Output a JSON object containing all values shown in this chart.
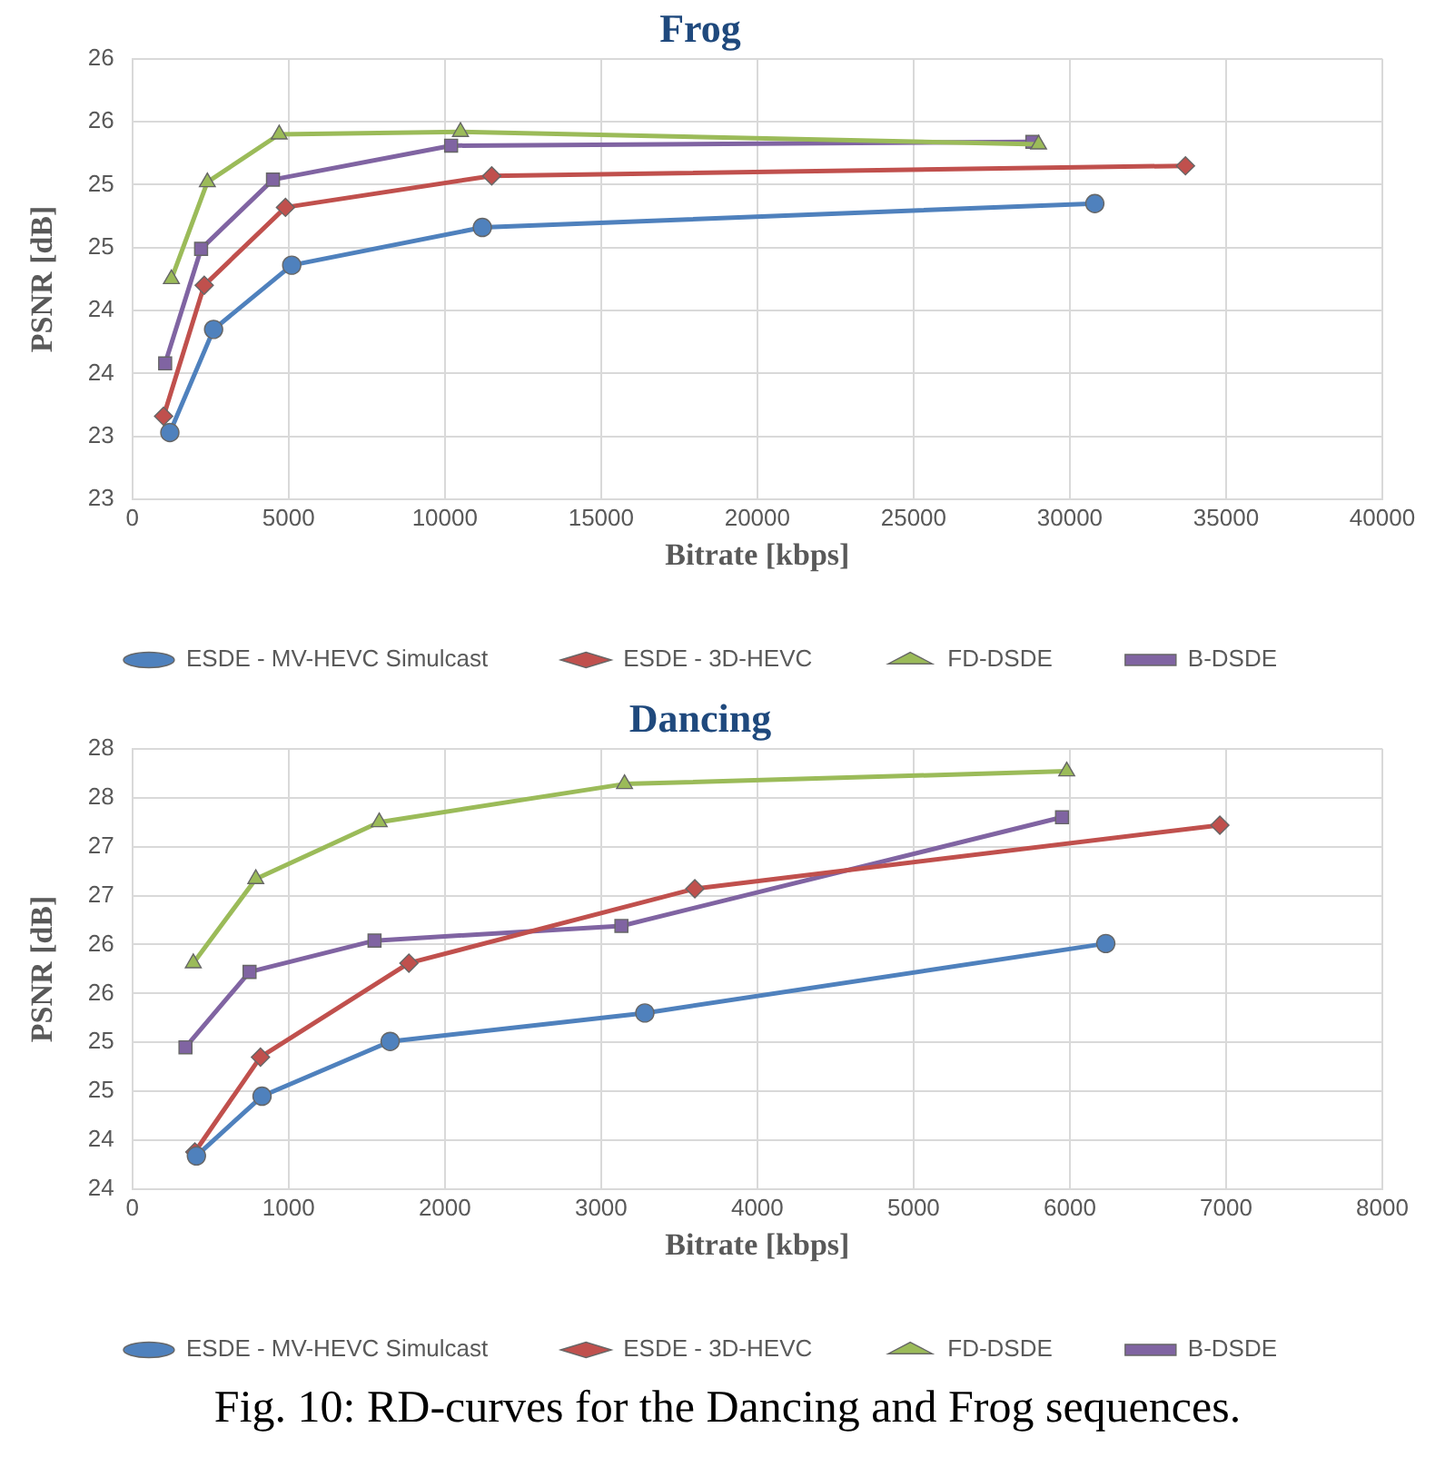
{
  "chart_data": [
    {
      "type": "line",
      "title": "Frog",
      "xlabel": "Bitrate [kbps]",
      "ylabel": "PSNR [dB]",
      "xlim": [
        0,
        40000
      ],
      "xticks": [
        0,
        5000,
        10000,
        15000,
        20000,
        25000,
        30000,
        35000,
        40000
      ],
      "ylim": [
        22.5,
        26
      ],
      "yticks": [
        {
          "value": 22.5,
          "label": "23"
        },
        {
          "value": 23,
          "label": "23"
        },
        {
          "value": 23.5,
          "label": "24"
        },
        {
          "value": 24,
          "label": "24"
        },
        {
          "value": 24.5,
          "label": "25"
        },
        {
          "value": 25,
          "label": "25"
        },
        {
          "value": 25.5,
          "label": "26"
        },
        {
          "value": 26,
          "label": "26"
        }
      ],
      "grid": true,
      "legend": "bottom",
      "series": [
        {
          "name": "ESDE - MV-HEVC Simulcast",
          "color": "#4f81bd",
          "marker": "circle",
          "x": [
            1200,
            2600,
            5100,
            11200,
            30800
          ],
          "values": [
            23.03,
            23.85,
            24.36,
            24.66,
            24.85
          ]
        },
        {
          "name": "ESDE - 3D-HEVC",
          "color": "#c0504d",
          "marker": "diamond",
          "x": [
            1000,
            2300,
            4900,
            11500,
            33700
          ],
          "values": [
            23.16,
            24.2,
            24.82,
            25.07,
            25.15
          ]
        },
        {
          "name": "FD-DSDE",
          "color": "#9bbb59",
          "marker": "triangle",
          "x": [
            1250,
            2400,
            4700,
            10500,
            29000
          ],
          "values": [
            24.25,
            25.02,
            25.4,
            25.42,
            25.32
          ]
        },
        {
          "name": "B-DSDE",
          "color": "#8064a2",
          "marker": "square",
          "x": [
            1050,
            2200,
            4500,
            10200,
            28800
          ],
          "values": [
            23.58,
            24.49,
            25.04,
            25.31,
            25.34
          ]
        }
      ]
    },
    {
      "type": "line",
      "title": "Dancing",
      "xlabel": "Bitrate [kbps]",
      "ylabel": "PSNR [dB]",
      "xlim": [
        0,
        8000
      ],
      "xticks": [
        0,
        1000,
        2000,
        3000,
        4000,
        5000,
        6000,
        7000,
        8000
      ],
      "ylim": [
        23.5,
        28
      ],
      "yticks": [
        {
          "value": 23.5,
          "label": "24"
        },
        {
          "value": 24,
          "label": "24"
        },
        {
          "value": 24.5,
          "label": "25"
        },
        {
          "value": 25,
          "label": "25"
        },
        {
          "value": 25.5,
          "label": "26"
        },
        {
          "value": 26,
          "label": "26"
        },
        {
          "value": 26.5,
          "label": "27"
        },
        {
          "value": 27,
          "label": "27"
        },
        {
          "value": 27.5,
          "label": "28"
        },
        {
          "value": 28,
          "label": "28"
        }
      ],
      "grid": true,
      "legend": "bottom",
      "annotations": [
        "Fig. 10: RD-curves for the Dancing and Frog sequences."
      ],
      "series": [
        {
          "name": "ESDE - MV-HEVC Simulcast",
          "color": "#4f81bd",
          "marker": "circle",
          "x": [
            410,
            830,
            1650,
            3280,
            6230
          ],
          "values": [
            23.84,
            24.45,
            25.01,
            25.3,
            26.01
          ]
        },
        {
          "name": "ESDE - 3D-HEVC",
          "color": "#c0504d",
          "marker": "diamond",
          "x": [
            400,
            820,
            1770,
            3600,
            6960
          ],
          "values": [
            23.88,
            24.85,
            25.81,
            26.57,
            27.22
          ]
        },
        {
          "name": "FD-DSDE",
          "color": "#9bbb59",
          "marker": "triangle",
          "x": [
            390,
            790,
            1580,
            3150,
            5980
          ],
          "values": [
            25.81,
            26.67,
            27.25,
            27.64,
            27.77
          ]
        },
        {
          "name": "B-DSDE",
          "color": "#8064a2",
          "marker": "square",
          "x": [
            340,
            750,
            1550,
            3130,
            5950
          ],
          "values": [
            24.95,
            25.72,
            26.04,
            26.19,
            27.3
          ]
        }
      ]
    }
  ]
}
